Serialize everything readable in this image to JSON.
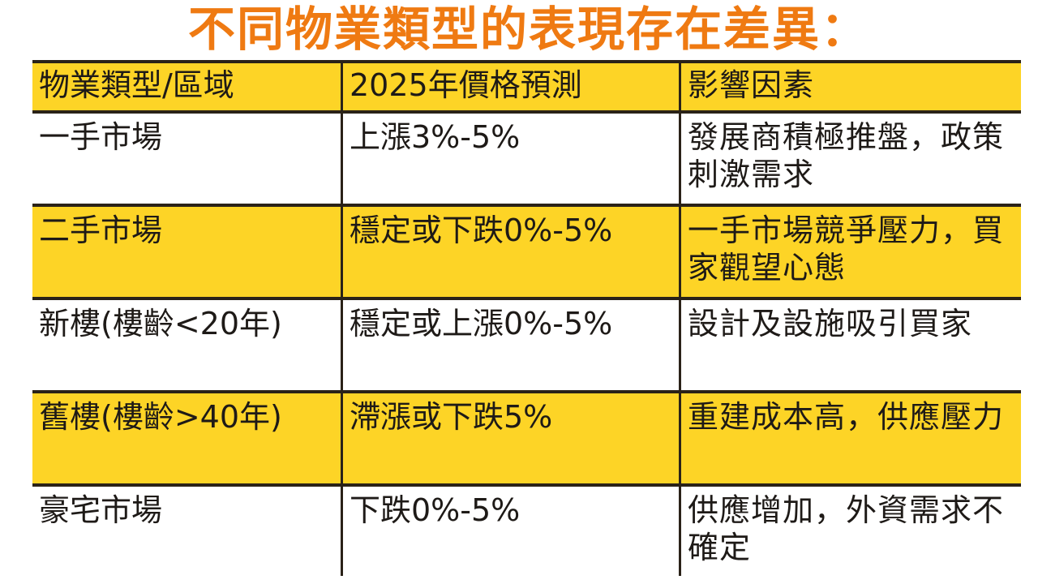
{
  "title": "不同物業類型的表現存在差異：",
  "table": {
    "headers": [
      "物業類型/區域",
      "2025年價格預測",
      "影響因素"
    ],
    "rows": [
      {
        "type": "一手市場",
        "forecast": "上漲3%-5%",
        "factors": "發展商積極推盤，政策刺激需求",
        "highlight": false
      },
      {
        "type": "二手市場",
        "forecast": "穩定或下跌0%-5%",
        "factors": "一手市場競爭壓力，買家觀望心態",
        "highlight": true
      },
      {
        "type": "新樓(樓齡<20年)",
        "forecast": "穩定或上漲0%-5%",
        "factors": "設計及設施吸引買家",
        "highlight": false
      },
      {
        "type": "舊樓(樓齡>40年)",
        "forecast": "滯漲或下跌5%",
        "factors": "重建成本高，供應壓力",
        "highlight": true
      },
      {
        "type": "豪宅市場",
        "forecast": "下跌0%-5%",
        "factors": "供應增加，外資需求不確定",
        "highlight": false
      }
    ]
  },
  "colors": {
    "title": "#ef7a12",
    "highlight_row": "#fdd426",
    "border": "#2a2218",
    "text": "#1e1a17",
    "background": "#ffffff"
  }
}
